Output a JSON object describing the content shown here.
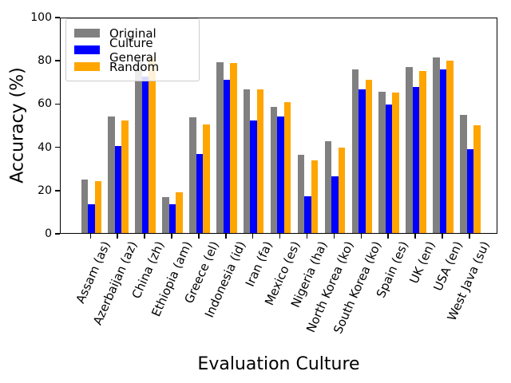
{
  "figure": {
    "background": "#ffffff"
  },
  "chart_data": {
    "type": "bar",
    "title": "",
    "xlabel": "Evaluation Culture",
    "ylabel": "Accuracy (%)",
    "ylim": [
      0,
      100
    ],
    "yticks": [
      0,
      20,
      40,
      60,
      80,
      100
    ],
    "grid": false,
    "legend_position": "upper left",
    "categories": [
      "Assam (as)",
      "Azerbaijan (az)",
      "China (zh)",
      "Ethiopia (am)",
      "Greece (el)",
      "Indonesia (id)",
      "Iran (fa)",
      "Mexico (es)",
      "Nigeria (ha)",
      "North Korea (ko)",
      "South Korea (ko)",
      "Spain (es)",
      "UK (en)",
      "USA (en)",
      "West Java (su)"
    ],
    "series": [
      {
        "name": "Original",
        "color": "#808080",
        "values": [
          24.7,
          53.8,
          81.7,
          16.5,
          53.4,
          79.0,
          66.5,
          58.4,
          36.2,
          42.4,
          75.6,
          65.5,
          76.6,
          81.2,
          54.7
        ]
      },
      {
        "name": "Culture General",
        "color": "#0000ff",
        "values": [
          13.2,
          40.2,
          72.2,
          13.2,
          36.6,
          71.0,
          52.2,
          53.8,
          16.9,
          26.4,
          66.5,
          59.3,
          67.6,
          75.7,
          38.8
        ]
      },
      {
        "name": "Random",
        "color": "#ffa500",
        "values": [
          23.9,
          52.2,
          81.2,
          19.0,
          50.1,
          78.7,
          66.5,
          60.6,
          33.5,
          39.6,
          71.0,
          65.1,
          75.0,
          79.6,
          49.9
        ]
      }
    ]
  }
}
